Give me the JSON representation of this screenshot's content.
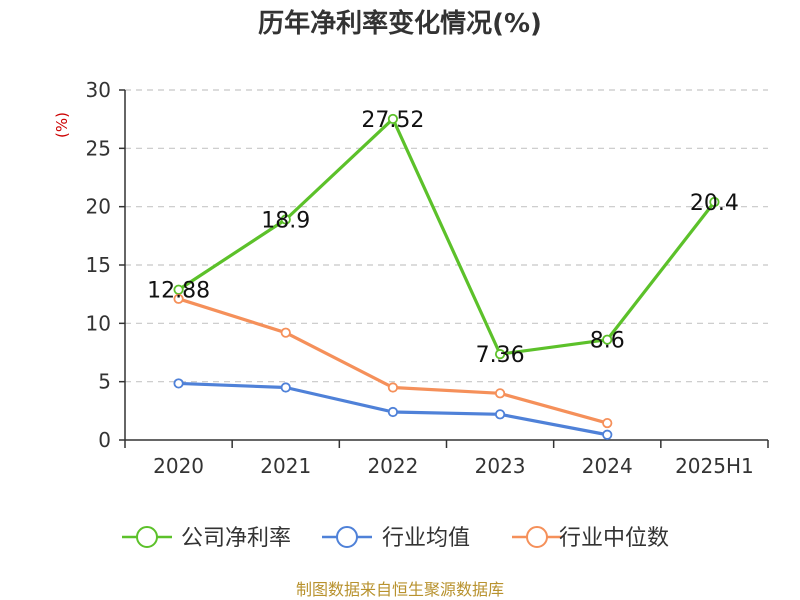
{
  "chart_data": {
    "type": "line",
    "title": "历年净利率变化情况(%)",
    "ylabel": "(%)",
    "xlabel": "",
    "categories": [
      "2020",
      "2021",
      "2022",
      "2023",
      "2024",
      "2025H1"
    ],
    "ylim": [
      0,
      30
    ],
    "yticks": [
      0,
      5,
      10,
      15,
      20,
      25,
      30
    ],
    "grid": true,
    "legend_position": "bottom",
    "series": [
      {
        "name": "公司净利率",
        "color": "#5cc12a",
        "values": [
          12.88,
          18.9,
          27.52,
          7.36,
          8.6,
          20.4
        ],
        "labels": [
          "12.88",
          "18.9",
          "27.52",
          "7.36",
          "8.6",
          "20.4"
        ]
      },
      {
        "name": "行业均值",
        "color": "#4f81d8",
        "values": [
          4.85,
          4.5,
          2.4,
          2.2,
          0.45,
          null
        ]
      },
      {
        "name": "行业中位数",
        "color": "#f5905a",
        "values": [
          12.1,
          9.2,
          4.5,
          4.0,
          1.45,
          null
        ]
      }
    ]
  },
  "footer": {
    "source": "制图数据来自恒生聚源数据库"
  }
}
